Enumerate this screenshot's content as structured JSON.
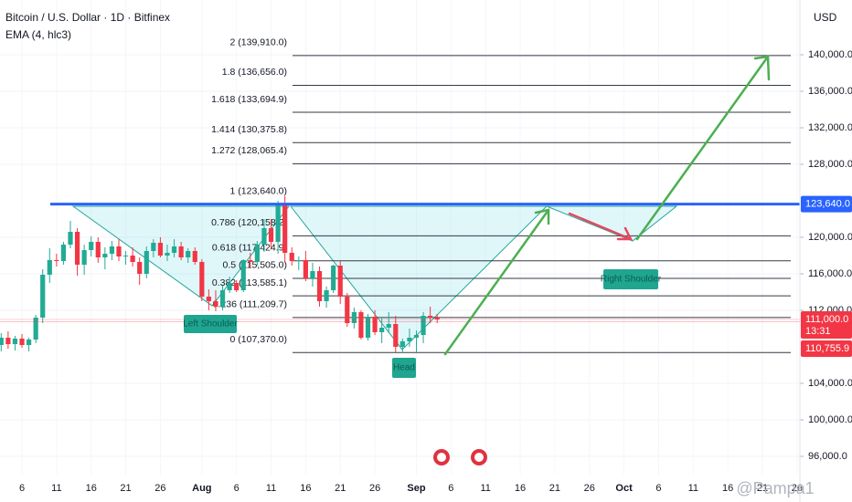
{
  "chart_data": {
    "type": "candlestick",
    "title": "Bitcoin / U.S. Dollar · 1D · Bitfinex",
    "subtitle": "EMA (4, hlc3)",
    "currency": "USD",
    "watermark": "@Pampa1",
    "up_color": "#22ab94",
    "down_color": "#f23645",
    "grid": true,
    "ylim": [
      94000,
      146000
    ],
    "yticks": [
      {
        "value": 140000,
        "label": "140,000.0"
      },
      {
        "value": 136000,
        "label": "136,000.0"
      },
      {
        "value": 132000,
        "label": "132,000.0"
      },
      {
        "value": 128000,
        "label": "128,000.0"
      },
      {
        "value": 120000,
        "label": "120,000.0"
      },
      {
        "value": 116000,
        "label": "116,000.0"
      },
      {
        "value": 112000,
        "label": "112,000.0"
      },
      {
        "value": 104000,
        "label": "104,000.0"
      },
      {
        "value": 100000,
        "label": "100,000.0"
      },
      {
        "value": 96000,
        "label": "96,000.0"
      }
    ],
    "categories": [
      null,
      null,
      null,
      "6",
      null,
      null,
      null,
      null,
      "11",
      null,
      null,
      null,
      null,
      "16",
      null,
      null,
      null,
      null,
      "21",
      null,
      null,
      null,
      null,
      "26",
      null,
      null,
      null,
      null,
      null,
      "Aug",
      null,
      null,
      null,
      null,
      "6",
      null,
      null,
      null,
      null,
      "11",
      null,
      null,
      null,
      null,
      "16",
      null,
      null,
      null,
      null,
      "21",
      null,
      null,
      null,
      null,
      "26",
      null,
      null,
      null,
      null,
      null,
      "Sep",
      null,
      null,
      null,
      null,
      "6",
      null,
      null,
      null,
      null,
      "11",
      null,
      null,
      null,
      null,
      "16",
      null,
      null,
      null,
      null,
      "21",
      null,
      null,
      null,
      null,
      "26",
      null,
      null,
      null,
      null,
      "Oct",
      null,
      null,
      null,
      null,
      "6",
      null,
      null,
      null,
      null,
      "11",
      null,
      null,
      null,
      null,
      "16",
      null,
      null,
      null,
      null,
      "21",
      null,
      null,
      null,
      null,
      "26"
    ],
    "candles": [
      [
        108200,
        109500,
        107500,
        109000
      ],
      [
        109000,
        109700,
        107800,
        108300
      ],
      [
        108300,
        109200,
        107600,
        108900
      ],
      [
        108900,
        109400,
        107900,
        108200
      ],
      [
        108200,
        109000,
        107500,
        108800
      ],
      [
        108800,
        111500,
        108400,
        111200
      ],
      [
        111200,
        116500,
        110600,
        115900
      ],
      [
        115900,
        118800,
        115000,
        117500
      ],
      [
        117500,
        118200,
        116800,
        117400
      ],
      [
        117400,
        119500,
        117000,
        119200
      ],
      [
        119200,
        121800,
        118800,
        120600
      ],
      [
        120600,
        121000,
        115800,
        117000
      ],
      [
        117000,
        119200,
        115900,
        118600
      ],
      [
        118600,
        120100,
        117900,
        119500
      ],
      [
        119500,
        120000,
        117200,
        117800
      ],
      [
        117800,
        118900,
        116500,
        118200
      ],
      [
        118200,
        119600,
        117500,
        119000
      ],
      [
        119000,
        119800,
        117400,
        117900
      ],
      [
        117900,
        118500,
        117000,
        118000
      ],
      [
        118000,
        118900,
        116800,
        117300
      ],
      [
        117300,
        117800,
        114800,
        116000
      ],
      [
        116000,
        119000,
        115500,
        118500
      ],
      [
        118500,
        119800,
        117800,
        119400
      ],
      [
        119400,
        120000,
        117800,
        118000
      ],
      [
        118000,
        119200,
        117400,
        118300
      ],
      [
        118300,
        119800,
        117800,
        119000
      ],
      [
        119000,
        119500,
        117500,
        117800
      ],
      [
        117800,
        118800,
        117200,
        118500
      ],
      [
        118500,
        118900,
        117000,
        117300
      ],
      [
        117300,
        117600,
        113000,
        113500
      ],
      [
        113500,
        114300,
        112000,
        113000
      ],
      [
        113000,
        114200,
        111900,
        112400
      ],
      [
        112400,
        114700,
        112000,
        114200
      ],
      [
        114200,
        115700,
        113900,
        115000
      ],
      [
        115000,
        115300,
        114000,
        114200
      ],
      [
        114200,
        117600,
        114000,
        117500
      ],
      [
        117500,
        118300,
        116600,
        117300
      ],
      [
        117300,
        119600,
        116900,
        119200
      ],
      [
        119200,
        122000,
        118400,
        121000
      ],
      [
        121000,
        122000,
        118800,
        119500
      ],
      [
        119500,
        124000,
        118200,
        123600
      ],
      [
        123600,
        124500,
        117200,
        118300
      ],
      [
        118300,
        118900,
        116900,
        117400
      ],
      [
        117400,
        117900,
        116400,
        117500
      ],
      [
        117500,
        118500,
        115200,
        115500
      ],
      [
        115500,
        117200,
        114600,
        116300
      ],
      [
        116300,
        116800,
        112400,
        113000
      ],
      [
        113000,
        114600,
        112300,
        114200
      ],
      [
        114200,
        117000,
        113900,
        116900
      ],
      [
        116900,
        117400,
        112700,
        113500
      ],
      [
        113500,
        113900,
        110200,
        110600
      ],
      [
        110600,
        112300,
        110000,
        111800
      ],
      [
        111800,
        112000,
        108800,
        109000
      ],
      [
        109000,
        111600,
        108700,
        111300
      ],
      [
        111300,
        112000,
        109300,
        109600
      ],
      [
        109600,
        111200,
        108400,
        110100
      ],
      [
        110100,
        111800,
        109500,
        110500
      ],
      [
        110500,
        111400,
        107400,
        108000
      ],
      [
        108000,
        108900,
        107300,
        108600
      ],
      [
        108600,
        110000,
        108000,
        109000
      ],
      [
        109000,
        109800,
        107400,
        109300
      ],
      [
        109300,
        111800,
        108400,
        111400
      ],
      [
        111400,
        112400,
        110600,
        111200
      ],
      [
        111200,
        111600,
        110600,
        111000
      ],
      null,
      null,
      null,
      null,
      null,
      null,
      null,
      null,
      null,
      null,
      null,
      null,
      null,
      null,
      null,
      null,
      null,
      null,
      null,
      null,
      null,
      null,
      null,
      null,
      null,
      null,
      null,
      null,
      null,
      null,
      null,
      null,
      null,
      null,
      null,
      null,
      null,
      null,
      null,
      null,
      null,
      null,
      null,
      null,
      null,
      null,
      null,
      null,
      null,
      null,
      null,
      null
    ],
    "fib_levels": [
      {
        "label": "2 (139,910.0)",
        "value": 139910
      },
      {
        "label": "1.8 (136,656.0)",
        "value": 136656
      },
      {
        "label": "1.618 (133,694.9)",
        "value": 133694.9
      },
      {
        "label": "1.414 (130,375.8)",
        "value": 130375.8
      },
      {
        "label": "1.272 (128,065.4)",
        "value": 128065.4
      },
      {
        "label": "1 (123,640.0)",
        "value": 123640
      },
      {
        "label": "0.786 (120,158.2)",
        "value": 120158.2
      },
      {
        "label": "0.618 (117,424.9)",
        "value": 117424.9
      },
      {
        "label": "0.5 (115,505.0)",
        "value": 115505
      },
      {
        "label": "0.382 (113,585.1)",
        "value": 113585.1
      },
      {
        "label": "0.236 (111,209.7)",
        "value": 111209.7
      },
      {
        "label": "0 (107,370.0)",
        "value": 107370
      }
    ],
    "price_labels": [
      {
        "label": "123,640.0",
        "value": 123640,
        "color": "#2962ff"
      },
      {
        "label": "111,000.0",
        "value": 111000,
        "color": "#f23645",
        "time": "13:31"
      },
      {
        "label": "110,755.9",
        "value": 110755.9,
        "color": "#f23645"
      }
    ],
    "annotations": [
      "Left Shoulder",
      "Head",
      "Right Shoulder"
    ]
  }
}
